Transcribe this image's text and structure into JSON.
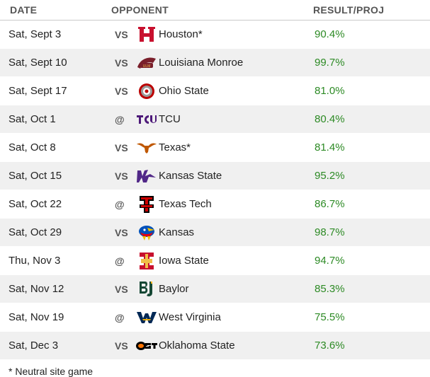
{
  "header": {
    "date": "DATE",
    "opponent": "OPPONENT",
    "result": "RESULT/PROJ"
  },
  "games": [
    {
      "date": "Sat, Sept 3",
      "loc": "VS",
      "team": "Houston*",
      "result": "90.4%",
      "logo": "houston-logo"
    },
    {
      "date": "Sat, Sept 10",
      "loc": "VS",
      "team": "Louisiana Monroe",
      "result": "99.7%",
      "logo": "ulm-logo"
    },
    {
      "date": "Sat, Sept 17",
      "loc": "VS",
      "team": "Ohio State",
      "result": "81.0%",
      "logo": "ohio-state-logo"
    },
    {
      "date": "Sat, Oct 1",
      "loc": "@",
      "team": "TCU",
      "result": "80.4%",
      "logo": "tcu-logo"
    },
    {
      "date": "Sat, Oct 8",
      "loc": "VS",
      "team": "Texas*",
      "result": "81.4%",
      "logo": "texas-logo"
    },
    {
      "date": "Sat, Oct 15",
      "loc": "VS",
      "team": "Kansas State",
      "result": "95.2%",
      "logo": "kansas-state-logo"
    },
    {
      "date": "Sat, Oct 22",
      "loc": "@",
      "team": "Texas Tech",
      "result": "86.7%",
      "logo": "texas-tech-logo"
    },
    {
      "date": "Sat, Oct 29",
      "loc": "VS",
      "team": "Kansas",
      "result": "98.7%",
      "logo": "kansas-logo"
    },
    {
      "date": "Thu, Nov 3",
      "loc": "@",
      "team": "Iowa State",
      "result": "94.7%",
      "logo": "iowa-state-logo"
    },
    {
      "date": "Sat, Nov 12",
      "loc": "VS",
      "team": "Baylor",
      "result": "85.3%",
      "logo": "baylor-logo"
    },
    {
      "date": "Sat, Nov 19",
      "loc": "@",
      "team": "West Virginia",
      "result": "75.5%",
      "logo": "west-virginia-logo"
    },
    {
      "date": "Sat, Dec 3",
      "loc": "VS",
      "team": "Oklahoma State",
      "result": "73.6%",
      "logo": "oklahoma-state-logo"
    }
  ],
  "footnote": "* Neutral site game",
  "colors": {
    "result": "#2c8a24",
    "alt_row": "#f0f0f0"
  }
}
